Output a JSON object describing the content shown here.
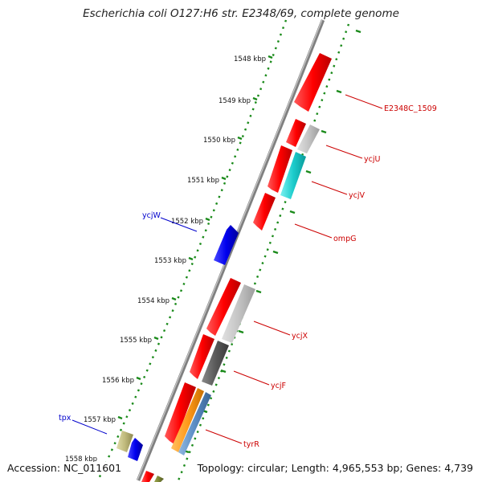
{
  "title": "Escherichia coli O127:H6 str. E2348/69, complete genome",
  "footer": {
    "accession": "Accession: NC_011601",
    "topology": "Topology: circular; Length: 4,965,553 bp; Genes: 4,739"
  },
  "colors": {
    "backbone": "#808080",
    "ticks": "#1a8a1a",
    "gene_label_forward": "#cc0000",
    "gene_label_reverse": "#0000cc"
  },
  "ticks": [
    "1548 kbp",
    "1549 kbp",
    "1550 kbp",
    "1551 kbp",
    "1552 kbp",
    "1553 kbp",
    "1554 kbp",
    "1555 kbp",
    "1556 kbp",
    "1557 kbp",
    "1558 kbp"
  ],
  "gene_labels": [
    {
      "text": "E2348C_1509",
      "strand": "forward"
    },
    {
      "text": "ycjU",
      "strand": "forward"
    },
    {
      "text": "ycjV",
      "strand": "forward"
    },
    {
      "text": "ycjW",
      "strand": "reverse"
    },
    {
      "text": "ompG",
      "strand": "forward"
    },
    {
      "text": "ycjX",
      "strand": "forward"
    },
    {
      "text": "ycjF",
      "strand": "forward"
    },
    {
      "text": "tpx",
      "strand": "reverse"
    },
    {
      "text": "tyrR",
      "strand": "forward"
    }
  ]
}
